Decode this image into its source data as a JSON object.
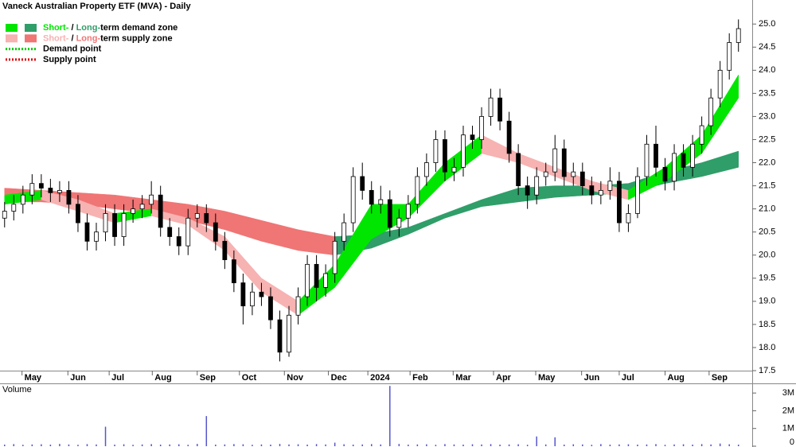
{
  "chart_data": [
    {
      "type": "candlestick",
      "title": "Vaneck Australian Property ETF (MVA) - Daily",
      "xlim": [
        -0.5,
        81.5
      ],
      "xticks": [
        {
          "value": 1.9,
          "label": "May"
        },
        {
          "value": 6.9,
          "label": "Jun"
        },
        {
          "value": 11.4,
          "label": "Jul"
        },
        {
          "value": 16.1,
          "label": "Aug"
        },
        {
          "value": 21.0,
          "label": "Sep"
        },
        {
          "value": 25.6,
          "label": "Oct"
        },
        {
          "value": 30.5,
          "label": "Nov"
        },
        {
          "value": 35.3,
          "label": "Dec"
        },
        {
          "value": 39.6,
          "label": "2024"
        },
        {
          "value": 44.2,
          "label": "Feb"
        },
        {
          "value": 48.9,
          "label": "Mar"
        },
        {
          "value": 53.3,
          "label": "Apr"
        },
        {
          "value": 57.9,
          "label": "May"
        },
        {
          "value": 62.9,
          "label": "Jun"
        },
        {
          "value": 67.0,
          "label": "Jul"
        },
        {
          "value": 72.0,
          "label": "Aug"
        },
        {
          "value": 76.8,
          "label": "Sep"
        }
      ],
      "ylim": [
        17.5,
        25.52
      ],
      "yticks": [
        17.5,
        {
          "value": 18,
          "label": "18.0"
        },
        18.5,
        {
          "value": 19,
          "label": "19.0"
        },
        19.5,
        {
          "value": 20,
          "label": "20.0"
        },
        20.5,
        {
          "value": 21,
          "label": "21.0"
        },
        21.5,
        {
          "value": 22,
          "label": "22.0"
        },
        22.5,
        {
          "value": 23,
          "label": "23.0"
        },
        23.5,
        {
          "value": 24,
          "label": "24.0"
        },
        24.5,
        {
          "value": 25,
          "label": "25.0"
        }
      ],
      "colors": {
        "short_demand": "#00e600",
        "long_demand": "#2f9e68",
        "short_supply": "#f7b2b2",
        "long_supply": "#f07575",
        "demand_point": "#00cc00",
        "supply_point": "#e00000"
      },
      "legend": [
        {
          "labels": [
            "Short-",
            " / ",
            "Long-",
            "term demand zone"
          ]
        },
        {
          "labels": [
            "Short-",
            " / ",
            "Long-",
            "term supply zone"
          ]
        },
        {
          "labels": [
            "Demand point"
          ]
        },
        {
          "labels": [
            "Supply point"
          ]
        }
      ],
      "open": [
        20.8,
        20.95,
        21.1,
        21.3,
        21.55,
        21.45,
        21.35,
        21.4,
        21.1,
        20.7,
        20.3,
        20.5,
        20.9,
        20.4,
        20.9,
        21.0,
        21.1,
        21.3,
        20.6,
        20.4,
        20.2,
        20.8,
        20.9,
        20.7,
        20.3,
        19.9,
        19.4,
        18.9,
        19.2,
        19.1,
        18.6,
        17.9,
        18.7,
        19.1,
        19.8,
        19.3,
        19.6,
        20.3,
        20.7,
        21.7,
        21.4,
        21.1,
        21.2,
        20.6,
        20.8,
        21.1,
        21.7,
        22.0,
        22.5,
        21.8,
        21.9,
        22.6,
        22.5,
        23.0,
        23.4,
        22.9,
        22.2,
        21.5,
        21.3,
        21.7,
        21.8,
        22.3,
        21.7,
        21.8,
        21.5,
        21.3,
        21.4,
        21.6,
        20.7,
        20.9,
        21.7,
        22.4,
        21.9,
        21.6,
        22.2,
        21.9,
        22.4,
        22.8,
        23.4,
        24.0,
        24.6
      ],
      "high": [
        21.15,
        21.3,
        21.5,
        21.75,
        21.75,
        21.65,
        21.6,
        21.6,
        21.3,
        20.9,
        20.7,
        21.1,
        21.1,
        21.1,
        21.2,
        21.3,
        21.6,
        21.5,
        20.8,
        20.6,
        21.0,
        21.1,
        21.1,
        20.9,
        20.5,
        20.1,
        19.6,
        19.4,
        19.4,
        19.3,
        18.8,
        18.9,
        19.3,
        20.0,
        20.0,
        19.8,
        20.5,
        20.9,
        21.9,
        22.0,
        21.6,
        21.5,
        21.4,
        21.0,
        21.3,
        21.9,
        22.2,
        22.7,
        22.7,
        22.1,
        22.8,
        22.8,
        23.2,
        23.6,
        23.6,
        23.1,
        22.4,
        21.7,
        21.9,
        22.0,
        22.6,
        22.5,
        22.0,
        22.0,
        21.7,
        21.6,
        21.9,
        21.8,
        21.1,
        21.9,
        22.6,
        22.8,
        22.1,
        22.4,
        22.4,
        22.6,
        23.0,
        23.6,
        24.2,
        24.8,
        25.1
      ],
      "low": [
        20.6,
        20.75,
        20.9,
        21.1,
        21.25,
        21.15,
        21.15,
        20.9,
        20.5,
        20.1,
        20.1,
        20.3,
        20.2,
        20.2,
        20.7,
        20.8,
        20.9,
        20.4,
        20.2,
        20.0,
        20.0,
        20.6,
        20.5,
        20.1,
        19.7,
        19.2,
        18.5,
        18.7,
        18.9,
        18.4,
        17.7,
        17.8,
        18.5,
        18.9,
        19.0,
        19.1,
        19.4,
        20.1,
        20.5,
        21.2,
        20.9,
        20.9,
        20.4,
        20.4,
        20.6,
        20.9,
        21.5,
        21.8,
        21.6,
        21.6,
        21.7,
        22.3,
        22.3,
        22.8,
        22.7,
        22.0,
        21.3,
        21.0,
        21.1,
        21.5,
        21.6,
        21.5,
        21.5,
        21.3,
        21.1,
        21.1,
        21.2,
        20.5,
        20.5,
        20.8,
        21.5,
        21.7,
        21.4,
        21.4,
        21.7,
        21.7,
        22.2,
        22.6,
        23.2,
        23.8,
        24.4
      ],
      "close": [
        20.95,
        21.1,
        21.3,
        21.55,
        21.45,
        21.35,
        21.4,
        21.1,
        20.7,
        20.3,
        20.5,
        20.9,
        20.4,
        20.9,
        21.0,
        21.1,
        21.3,
        20.6,
        20.4,
        20.2,
        20.8,
        20.9,
        20.7,
        20.3,
        19.9,
        19.4,
        18.9,
        19.2,
        19.1,
        18.6,
        17.9,
        18.7,
        19.1,
        19.8,
        19.3,
        19.6,
        20.3,
        20.7,
        21.7,
        21.4,
        21.1,
        21.2,
        20.6,
        20.8,
        21.1,
        21.7,
        22.0,
        22.5,
        21.8,
        21.9,
        22.6,
        22.5,
        23.0,
        23.4,
        22.9,
        22.2,
        21.5,
        21.3,
        21.7,
        21.8,
        22.3,
        21.7,
        21.8,
        21.5,
        21.3,
        21.4,
        21.6,
        20.7,
        20.9,
        21.7,
        22.4,
        21.9,
        21.6,
        22.2,
        21.9,
        22.4,
        22.8,
        23.4,
        24.0,
        24.6,
        24.9
      ],
      "band_x": [
        0,
        4,
        8,
        12,
        16,
        20,
        24,
        28,
        32,
        36,
        40,
        44,
        48,
        52,
        56,
        60,
        64,
        68,
        72,
        76,
        80
      ],
      "short_upper": [
        21.3,
        21.4,
        21.2,
        20.9,
        21.0,
        20.8,
        20.4,
        19.5,
        19.0,
        19.8,
        21.1,
        21.1,
        22.0,
        22.6,
        22.2,
        21.9,
        21.6,
        21.4,
        21.9,
        22.6,
        23.9
      ],
      "short_lower": [
        21.1,
        21.2,
        20.95,
        20.7,
        20.85,
        20.65,
        20.1,
        19.2,
        18.7,
        19.3,
        20.35,
        20.8,
        21.6,
        22.2,
        22.0,
        21.7,
        21.4,
        21.2,
        21.6,
        22.2,
        23.4
      ],
      "long_upper": [
        21.45,
        21.4,
        21.35,
        21.3,
        21.2,
        21.1,
        20.95,
        20.75,
        20.55,
        20.4,
        20.45,
        20.6,
        20.9,
        21.2,
        21.45,
        21.5,
        21.5,
        21.55,
        21.8,
        22.0,
        22.25
      ],
      "long_lower": [
        21.15,
        21.15,
        21.1,
        21.0,
        20.9,
        20.75,
        20.55,
        20.3,
        20.1,
        20.0,
        20.15,
        20.45,
        20.8,
        21.05,
        21.15,
        21.25,
        21.3,
        21.35,
        21.55,
        21.7,
        21.9
      ]
    },
    {
      "type": "bar",
      "title": "Volume",
      "color": "#5555cc",
      "ylim": [
        0,
        3500000
      ],
      "yticks": [
        0,
        {
          "value": 1000000,
          "label": "1M"
        },
        {
          "value": 2000000,
          "label": "2M"
        },
        {
          "value": 3000000,
          "label": "3M"
        }
      ],
      "values": [
        90000,
        120000,
        80000,
        100000,
        110000,
        90000,
        130000,
        100000,
        80000,
        120000,
        100000,
        1100000,
        90000,
        110000,
        80000,
        100000,
        120000,
        90000,
        100000,
        110000,
        80000,
        130000,
        1700000,
        90000,
        100000,
        120000,
        110000,
        80000,
        100000,
        90000,
        130000,
        100000,
        110000,
        90000,
        120000,
        100000,
        200000,
        110000,
        90000,
        100000,
        120000,
        100000,
        3400000,
        130000,
        90000,
        100000,
        110000,
        80000,
        120000,
        100000,
        90000,
        110000,
        100000,
        120000,
        90000,
        100000,
        110000,
        80000,
        550000,
        100000,
        500000,
        90000,
        110000,
        100000,
        80000,
        120000,
        90000,
        100000,
        110000,
        90000,
        100000,
        120000,
        80000,
        100000,
        110000,
        90000,
        120000,
        100000,
        150000,
        110000,
        90000
      ]
    }
  ]
}
